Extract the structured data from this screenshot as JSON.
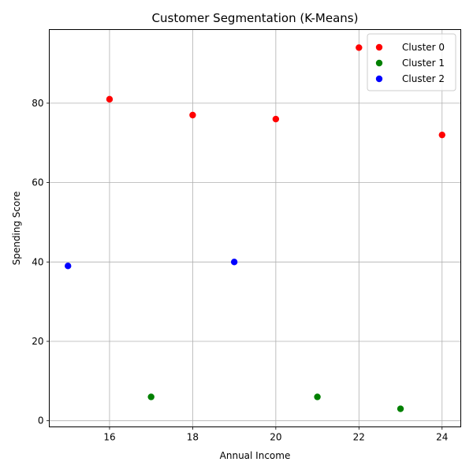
{
  "chart_data": {
    "type": "scatter",
    "title": "Customer Segmentation (K-Means)",
    "xlabel": "Annual Income",
    "ylabel": "Spending Score",
    "xlim": [
      14.55,
      24.45
    ],
    "ylim": [
      -1.55,
      98.55
    ],
    "xticks": [
      16,
      18,
      20,
      22,
      24
    ],
    "yticks": [
      0,
      20,
      40,
      60,
      80
    ],
    "grid": true,
    "legend_position": "top-right",
    "series": [
      {
        "name": "Cluster 0",
        "color": "#ff0000",
        "points": [
          {
            "x": 16,
            "y": 81
          },
          {
            "x": 18,
            "y": 77
          },
          {
            "x": 20,
            "y": 76
          },
          {
            "x": 22,
            "y": 94
          },
          {
            "x": 24,
            "y": 72
          }
        ]
      },
      {
        "name": "Cluster 1",
        "color": "#008000",
        "points": [
          {
            "x": 17,
            "y": 6
          },
          {
            "x": 21,
            "y": 6
          },
          {
            "x": 23,
            "y": 3
          }
        ]
      },
      {
        "name": "Cluster 2",
        "color": "#0000ff",
        "points": [
          {
            "x": 15,
            "y": 39
          },
          {
            "x": 19,
            "y": 40
          }
        ]
      }
    ]
  }
}
